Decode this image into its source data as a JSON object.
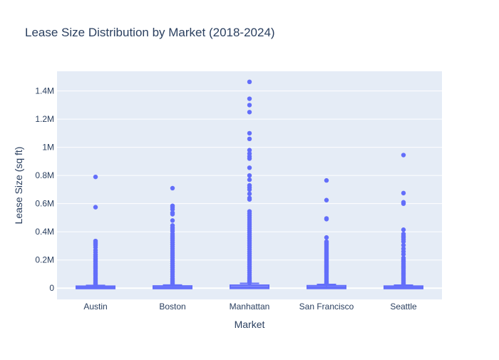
{
  "chart_data": {
    "type": "box",
    "title": "Lease Size Distribution by Market (2018-2024)",
    "xlabel": "Market",
    "ylabel": "Lease Size (sq ft)",
    "categories": [
      "Austin",
      "Boston",
      "Manhattan",
      "San Francisco",
      "Seattle"
    ],
    "ylim": [
      -80000,
      1540000
    ],
    "yticks": [
      0,
      200000,
      400000,
      600000,
      800000,
      1000000,
      1200000,
      1400000
    ],
    "ytick_labels": [
      "0",
      "0.2M",
      "0.4M",
      "0.6M",
      "0.8M",
      "1M",
      "1.2M",
      "1.4M"
    ],
    "grid": true,
    "colors": {
      "series": "#636efa",
      "plot_bg": "#e5ecf6",
      "grid": "#ffffff",
      "text": "#2a3f5f"
    },
    "boxes": [
      {
        "name": "Austin",
        "q1": 2000,
        "median": 4500,
        "q3": 9000,
        "lowerfence": 500,
        "upperfence": 19500,
        "outliers": [
          790000,
          575000,
          335000,
          325000,
          315000,
          305000,
          290000,
          270000,
          255000,
          238000,
          225000,
          212000,
          200000,
          188000,
          176000,
          164000,
          152000,
          140000,
          128000,
          116000,
          104000,
          92000,
          80000,
          68000,
          56000,
          45000,
          36000,
          28000,
          22000
        ]
      },
      {
        "name": "Boston",
        "q1": 2000,
        "median": 5000,
        "q3": 10500,
        "lowerfence": 500,
        "upperfence": 22000,
        "outliers": [
          710000,
          585000,
          575000,
          560000,
          535000,
          525000,
          480000,
          445000,
          430000,
          420000,
          405000,
          385000,
          370000,
          355000,
          340000,
          325000,
          310000,
          295000,
          280000,
          265000,
          250000,
          235000,
          220000,
          205000,
          190000,
          175000,
          160000,
          145000,
          130000,
          115000,
          100000,
          85000,
          70000,
          58000,
          46000,
          36000,
          28000
        ]
      },
      {
        "name": "Manhattan",
        "q1": 3000,
        "median": 8000,
        "q3": 16000,
        "lowerfence": 500,
        "upperfence": 34000,
        "outliers": [
          1465000,
          1345000,
          1300000,
          1250000,
          1100000,
          1060000,
          980000,
          955000,
          935000,
          920000,
          855000,
          800000,
          770000,
          730000,
          715000,
          700000,
          670000,
          640000,
          630000,
          545000,
          530000,
          515000,
          500000,
          485000,
          470000,
          455000,
          440000,
          425000,
          410000,
          395000,
          380000,
          365000,
          350000,
          335000,
          320000,
          305000,
          290000,
          275000,
          260000,
          245000,
          230000,
          215000,
          200000,
          185000,
          170000,
          155000,
          140000,
          125000,
          110000,
          95000,
          80000,
          68000,
          56000,
          46000,
          38000
        ]
      },
      {
        "name": "San Francisco",
        "q1": 2500,
        "median": 6000,
        "q3": 12500,
        "lowerfence": 500,
        "upperfence": 26000,
        "outliers": [
          765000,
          625000,
          495000,
          490000,
          360000,
          330000,
          320000,
          310000,
          300000,
          290000,
          280000,
          270000,
          260000,
          250000,
          240000,
          230000,
          220000,
          210000,
          200000,
          190000,
          180000,
          170000,
          160000,
          150000,
          140000,
          130000,
          120000,
          110000,
          100000,
          90000,
          80000,
          70000,
          60000,
          50000,
          42000,
          34000,
          28000
        ]
      },
      {
        "name": "Seattle",
        "q1": 2000,
        "median": 4500,
        "q3": 9500,
        "lowerfence": 500,
        "upperfence": 21000,
        "outliers": [
          945000,
          675000,
          610000,
          600000,
          415000,
          385000,
          370000,
          360000,
          345000,
          330000,
          305000,
          280000,
          260000,
          240000,
          215000,
          200000,
          188000,
          176000,
          164000,
          152000,
          140000,
          128000,
          116000,
          104000,
          92000,
          80000,
          68000,
          56000,
          45000,
          36000,
          28000
        ]
      }
    ]
  }
}
